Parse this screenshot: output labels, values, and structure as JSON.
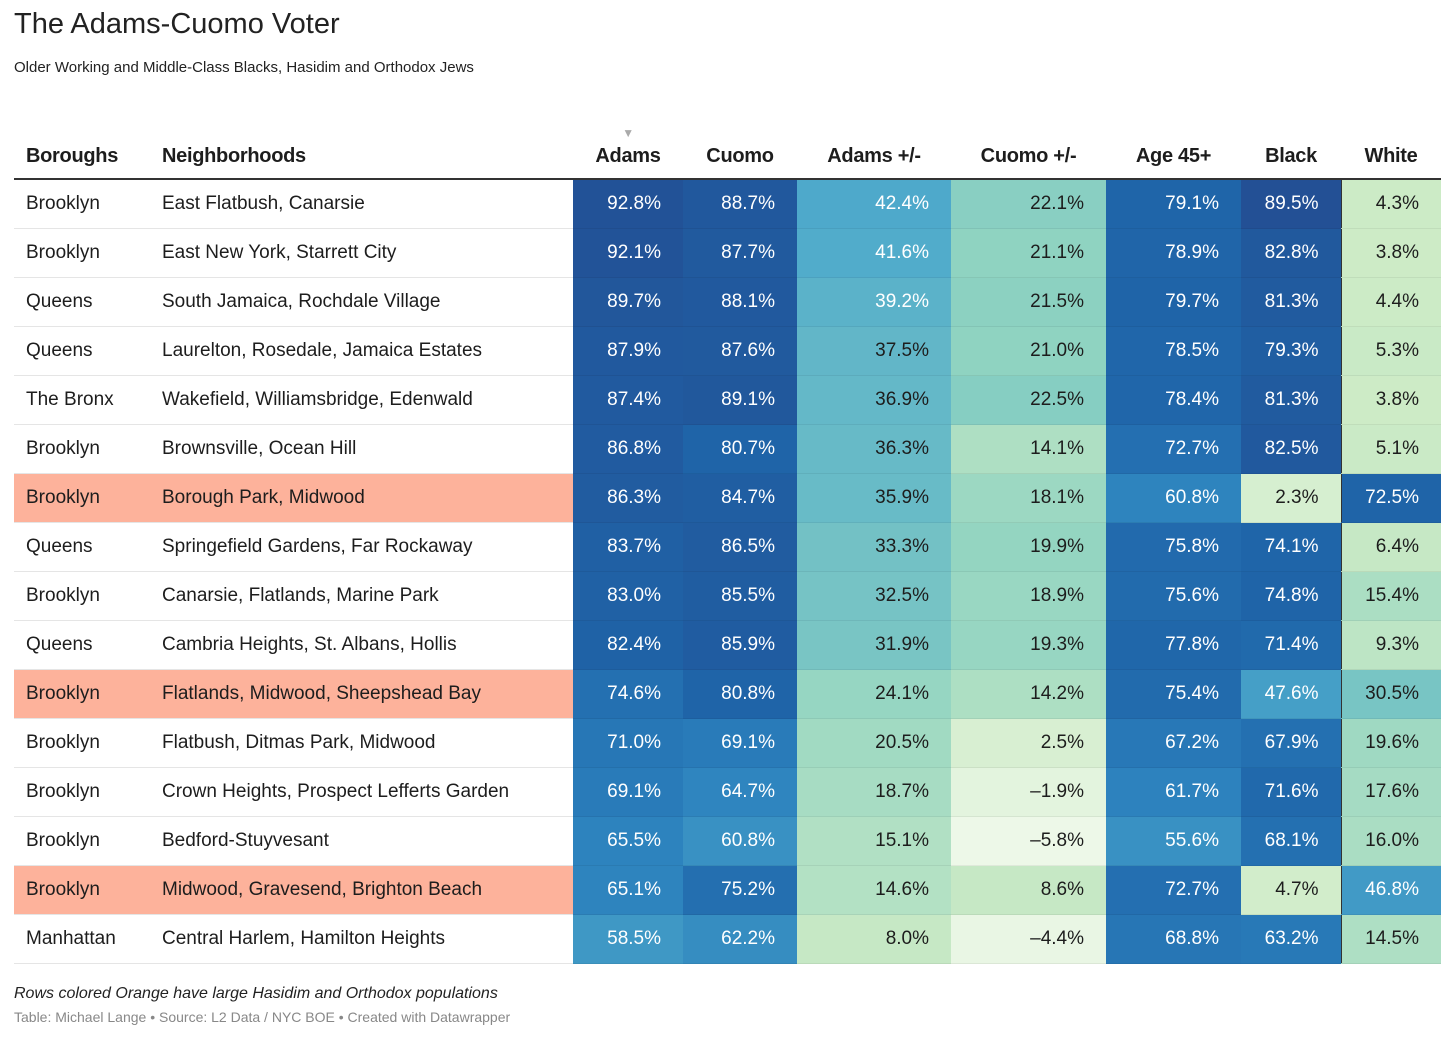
{
  "title": "The Adams-Cuomo Voter",
  "subtitle": "Older Working and Middle-Class Blacks, Hasidim and Orthodox Jews",
  "columns": [
    "Boroughs",
    "Neighborhoods",
    "Adams",
    "Cuomo",
    "Adams +/-",
    "Cuomo +/-",
    "Age 45+",
    "Black",
    "White"
  ],
  "sort_icon": "triangle-down",
  "highlight_color": "#fdb29b",
  "palette": [
    "#f0f9ec",
    "#cdebc6",
    "#8fd3c1",
    "#4eaacb",
    "#2b80bd",
    "#1f64a8",
    "#234f94"
  ],
  "color_domains": [
    [
      0,
      95
    ],
    [
      0,
      95
    ],
    [
      -15,
      89
    ],
    [
      -7.2,
      63.5
    ],
    [
      -18,
      97
    ],
    [
      -13,
      90
    ],
    [
      -17,
      88
    ]
  ],
  "rows": [
    {
      "borough": "Brooklyn",
      "hood": "East Flatbush, Canarsie",
      "hl": false,
      "vals": [
        "92.8%",
        "88.7%",
        "42.4%",
        "22.1%",
        "79.1%",
        "89.5%",
        "4.3%"
      ]
    },
    {
      "borough": "Brooklyn",
      "hood": "East New York, Starrett City",
      "hl": false,
      "vals": [
        "92.1%",
        "87.7%",
        "41.6%",
        "21.1%",
        "78.9%",
        "82.8%",
        "3.8%"
      ]
    },
    {
      "borough": "Queens",
      "hood": "South Jamaica, Rochdale Village",
      "hl": false,
      "vals": [
        "89.7%",
        "88.1%",
        "39.2%",
        "21.5%",
        "79.7%",
        "81.3%",
        "4.4%"
      ]
    },
    {
      "borough": "Queens",
      "hood": "Laurelton, Rosedale, Jamaica Estates",
      "hl": false,
      "vals": [
        "87.9%",
        "87.6%",
        "37.5%",
        "21.0%",
        "78.5%",
        "79.3%",
        "5.3%"
      ]
    },
    {
      "borough": "The Bronx",
      "hood": "Wakefield, Williamsbridge, Edenwald",
      "hl": false,
      "vals": [
        "87.4%",
        "89.1%",
        "36.9%",
        "22.5%",
        "78.4%",
        "81.3%",
        "3.8%"
      ]
    },
    {
      "borough": "Brooklyn",
      "hood": "Brownsville, Ocean Hill",
      "hl": false,
      "vals": [
        "86.8%",
        "80.7%",
        "36.3%",
        "14.1%",
        "72.7%",
        "82.5%",
        "5.1%"
      ]
    },
    {
      "borough": "Brooklyn",
      "hood": "Borough Park, Midwood",
      "hl": true,
      "vals": [
        "86.3%",
        "84.7%",
        "35.9%",
        "18.1%",
        "60.8%",
        "2.3%",
        "72.5%"
      ]
    },
    {
      "borough": "Queens",
      "hood": "Springefield Gardens, Far Rockaway",
      "hl": false,
      "vals": [
        "83.7%",
        "86.5%",
        "33.3%",
        "19.9%",
        "75.8%",
        "74.1%",
        "6.4%"
      ]
    },
    {
      "borough": "Brooklyn",
      "hood": "Canarsie, Flatlands, Marine Park",
      "hl": false,
      "vals": [
        "83.0%",
        "85.5%",
        "32.5%",
        "18.9%",
        "75.6%",
        "74.8%",
        "15.4%"
      ]
    },
    {
      "borough": "Queens",
      "hood": "Cambria Heights, St. Albans, Hollis",
      "hl": false,
      "vals": [
        "82.4%",
        "85.9%",
        "31.9%",
        "19.3%",
        "77.8%",
        "71.4%",
        "9.3%"
      ]
    },
    {
      "borough": "Brooklyn",
      "hood": "Flatlands, Midwood, Sheepshead Bay",
      "hl": true,
      "vals": [
        "74.6%",
        "80.8%",
        "24.1%",
        "14.2%",
        "75.4%",
        "47.6%",
        "30.5%"
      ]
    },
    {
      "borough": "Brooklyn",
      "hood": "Flatbush, Ditmas Park, Midwood",
      "hl": false,
      "vals": [
        "71.0%",
        "69.1%",
        "20.5%",
        "2.5%",
        "67.2%",
        "67.9%",
        "19.6%"
      ]
    },
    {
      "borough": "Brooklyn",
      "hood": "Crown Heights, Prospect Lefferts Garden",
      "hl": false,
      "vals": [
        "69.1%",
        "64.7%",
        "18.7%",
        "–1.9%",
        "61.7%",
        "71.6%",
        "17.6%"
      ]
    },
    {
      "borough": "Brooklyn",
      "hood": "Bedford-Stuyvesant",
      "hl": false,
      "vals": [
        "65.5%",
        "60.8%",
        "15.1%",
        "–5.8%",
        "55.6%",
        "68.1%",
        "16.0%"
      ]
    },
    {
      "borough": "Brooklyn",
      "hood": "Midwood, Gravesend, Brighton Beach",
      "hl": true,
      "vals": [
        "65.1%",
        "75.2%",
        "14.6%",
        "8.6%",
        "72.7%",
        "4.7%",
        "46.8%"
      ]
    },
    {
      "borough": "Manhattan",
      "hood": "Central Harlem, Hamilton Heights",
      "hl": false,
      "vals": [
        "58.5%",
        "62.2%",
        "8.0%",
        "–4.4%",
        "68.8%",
        "63.2%",
        "14.5%"
      ]
    }
  ],
  "notes": "Rows colored Orange have large Hasidim and Orthodox populations",
  "byline": "Table: Michael Lange • Source: L2 Data / NYC BOE • Created with Datawrapper"
}
